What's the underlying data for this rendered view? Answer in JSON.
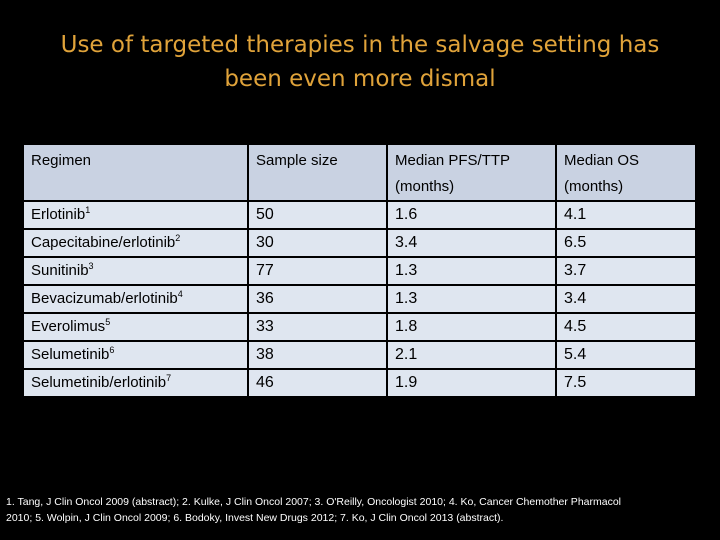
{
  "title": {
    "line1": "Use of targeted therapies in the salvage setting has",
    "line2": "been even more dismal"
  },
  "table": {
    "headers": [
      "Regimen",
      "Sample size",
      "Median PFS/TTP (months)",
      "Median OS (months)"
    ],
    "rows": [
      {
        "regimen": "Erlotinib",
        "ref": "1",
        "sample_size": "50",
        "pfs": "1.6",
        "os": "4.1"
      },
      {
        "regimen": "Capecitabine/erlotinib",
        "ref": "2",
        "sample_size": "30",
        "pfs": "3.4",
        "os": "6.5"
      },
      {
        "regimen": "Sunitinib",
        "ref": "3",
        "sample_size": "77",
        "pfs": "1.3",
        "os": "3.7"
      },
      {
        "regimen": "Bevacizumab/erlotinib",
        "ref": "4",
        "sample_size": "36",
        "pfs": "1.3",
        "os": "3.4"
      },
      {
        "regimen": "Everolimus",
        "ref": "5",
        "sample_size": "33",
        "pfs": "1.8",
        "os": "4.5"
      },
      {
        "regimen": "Selumetinib",
        "ref": "6",
        "sample_size": "38",
        "pfs": "2.1",
        "os": "5.4"
      },
      {
        "regimen": "Selumetinib/erlotinib",
        "ref": "7",
        "sample_size": "46",
        "pfs": "1.9",
        "os": "7.5"
      }
    ]
  },
  "footnote": {
    "line1": "1. Tang, J Clin Oncol 2009 (abstract); 2. Kulke, J Clin Oncol 2007; 3. O'Reilly, Oncologist 2010; 4. Ko, Cancer Chemother Pharmacol",
    "line2": "2010; 5. Wolpin, J Clin Oncol 2009; 6. Bodoky, Invest New Drugs 2012; 7. Ko, J Clin Oncol 2013 (abstract)."
  },
  "colors": {
    "background": "#000000",
    "title": "#e0a33a",
    "table_header": "#c9d2e2",
    "table_body": "#dfe6f0",
    "footnote": "#ffffff"
  }
}
